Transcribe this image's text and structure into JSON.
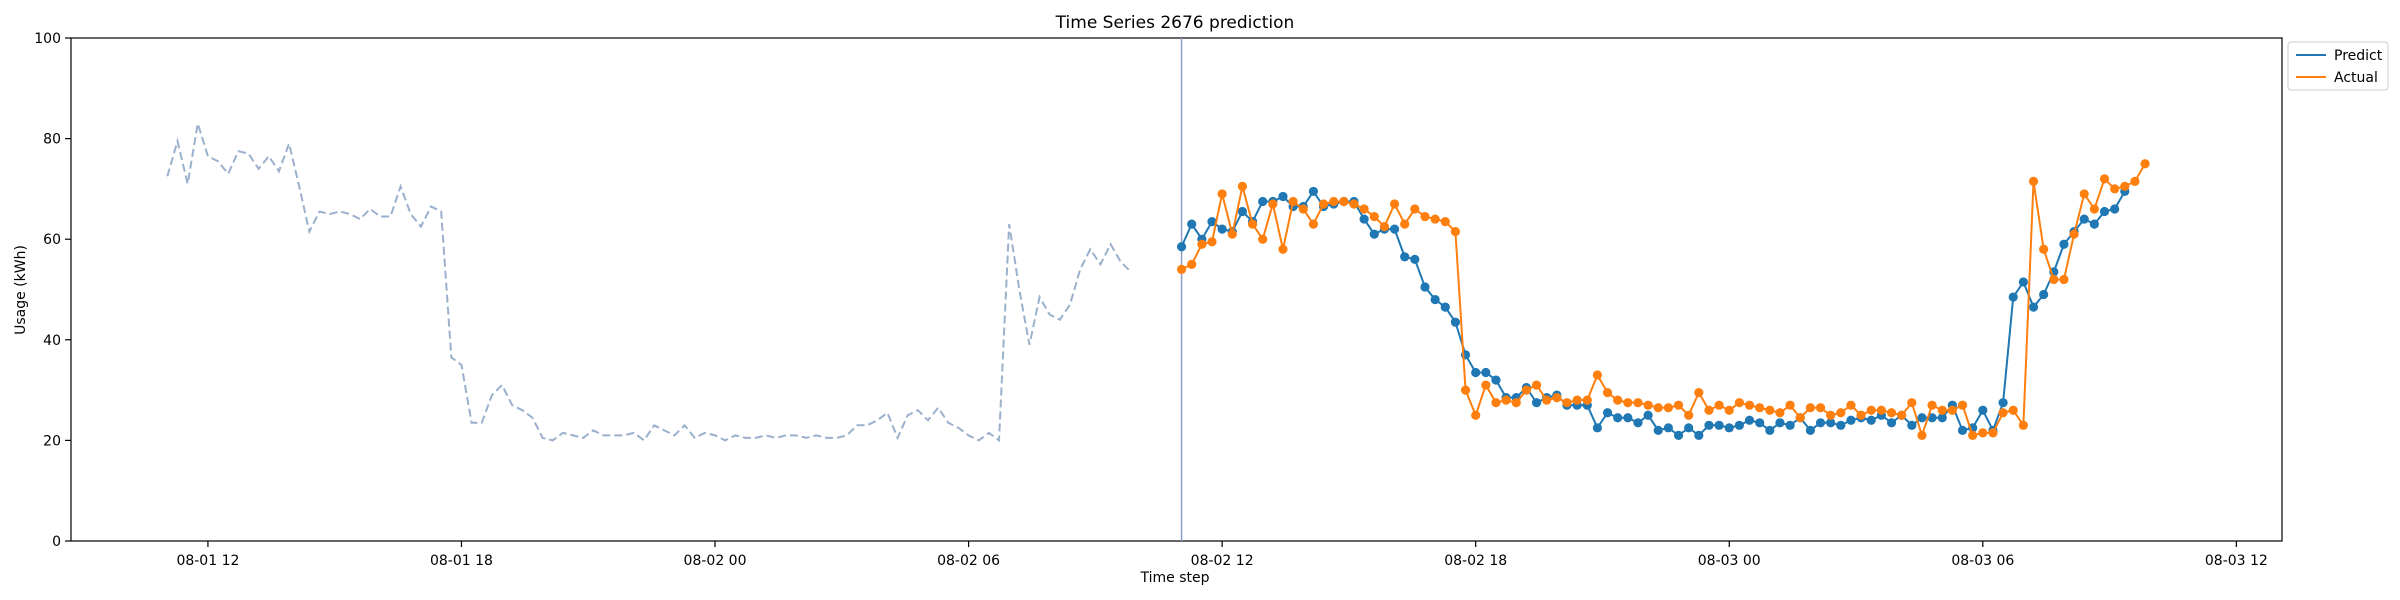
{
  "chart_data": {
    "type": "line",
    "title": "Time Series 2676 prediction",
    "xlabel": "Time step",
    "ylabel": "Usage (kWh)",
    "ylim": [
      0,
      100
    ],
    "xlim": [
      -9.5,
      208.5
    ],
    "y_ticks": [
      0,
      20,
      40,
      60,
      80,
      100
    ],
    "x_ticks": [
      {
        "label": "08-01 12",
        "x": 4
      },
      {
        "label": "08-01 18",
        "x": 29
      },
      {
        "label": "08-02 00",
        "x": 54
      },
      {
        "label": "08-02 06",
        "x": 79
      },
      {
        "label": "08-02 12",
        "x": 104
      },
      {
        "label": "08-02 18",
        "x": 129
      },
      {
        "label": "08-03 00",
        "x": 154
      },
      {
        "label": "08-03 06",
        "x": 179
      },
      {
        "label": "08-03 12",
        "x": 204
      }
    ],
    "forecast_start_x": 100,
    "grid": false,
    "legend_position": "top-right outside",
    "history": {
      "x_start": 0,
      "values": [
        72.5,
        79.5,
        71,
        83,
        76.5,
        75.5,
        73,
        77.5,
        77,
        74,
        76.5,
        73.5,
        79,
        70.5,
        61.5,
        65.5,
        65,
        65.5,
        65,
        64,
        66,
        64.5,
        64.5,
        70.5,
        65,
        62.5,
        66.5,
        65.5,
        36.5,
        35,
        23.5,
        23.5,
        29,
        31,
        27,
        26,
        24.5,
        20.5,
        20,
        21.5,
        21,
        20.5,
        22,
        21,
        21,
        21,
        21.5,
        20,
        23,
        22,
        21,
        23,
        20.5,
        21.5,
        21,
        20,
        21,
        20.5,
        20.5,
        21,
        20.5,
        21,
        21,
        20.5,
        21,
        20.5,
        20.5,
        21,
        23,
        23,
        24,
        25.5,
        20.5,
        25,
        26,
        24,
        26.5,
        23.5,
        22.5,
        21,
        20,
        21.5,
        20,
        63,
        50,
        39,
        48.5,
        45,
        44,
        47,
        54,
        58,
        55,
        59,
        55.5,
        53.5
      ]
    },
    "series": [
      {
        "name": "Predict",
        "color": "#1f77b4",
        "x_start": 100,
        "values": [
          58.5,
          63,
          60,
          63.5,
          62,
          61.5,
          65.5,
          63.5,
          67.5,
          67.5,
          68.5,
          66.5,
          66.5,
          69.5,
          66.5,
          67,
          67.5,
          67.5,
          64,
          61,
          62,
          62,
          56.5,
          56,
          50.5,
          48,
          46.5,
          43.5,
          37,
          33.5,
          33.5,
          32,
          28.5,
          28.5,
          30.5,
          27.5,
          28.5,
          29,
          27,
          27,
          27,
          22.5,
          25.5,
          24.5,
          24.5,
          23.5,
          25,
          22,
          22.5,
          21,
          22.5,
          21,
          23,
          23,
          22.5,
          23,
          24,
          23.5,
          22,
          23.5,
          23,
          24.5,
          22,
          23.5,
          23.5,
          23,
          24,
          24.5,
          24,
          25,
          23.5,
          25,
          23,
          24.5,
          24.5,
          24.5,
          27,
          22,
          22.5,
          26,
          22,
          27.5,
          48.5,
          51.5,
          46.5,
          49,
          53.5,
          59,
          61.5,
          64,
          63,
          65.5,
          66,
          69.5
        ]
      },
      {
        "name": "Actual",
        "color": "#ff7f0e",
        "x_start": 100,
        "values": [
          54,
          55,
          59,
          59.5,
          69,
          61,
          70.5,
          63,
          60,
          67,
          58,
          67.5,
          66,
          63,
          67,
          67.5,
          67.5,
          67,
          66,
          64.5,
          62.5,
          67,
          63,
          66,
          64.5,
          64,
          63.5,
          61.5,
          30,
          25,
          31,
          27.5,
          28,
          27.5,
          30,
          31,
          28,
          28.5,
          27.5,
          28,
          28,
          33,
          29.5,
          28,
          27.5,
          27.5,
          27,
          26.5,
          26.5,
          27,
          25,
          29.5,
          26,
          27,
          26,
          27.5,
          27,
          26.5,
          26,
          25.5,
          27,
          24.5,
          26.5,
          26.5,
          25,
          25.5,
          27,
          25,
          26,
          26,
          25.5,
          25,
          27.5,
          21,
          27,
          26,
          26,
          27,
          21,
          21.5,
          21.5,
          25.5,
          26,
          23,
          71.5,
          58,
          52,
          52,
          61,
          69,
          66,
          72,
          70,
          70.5,
          71.5,
          75
        ]
      }
    ]
  },
  "legend": {
    "entries": [
      {
        "label": "Predict",
        "color": "#1f77b4"
      },
      {
        "label": "Actual",
        "color": "#ff7f0e"
      }
    ]
  }
}
